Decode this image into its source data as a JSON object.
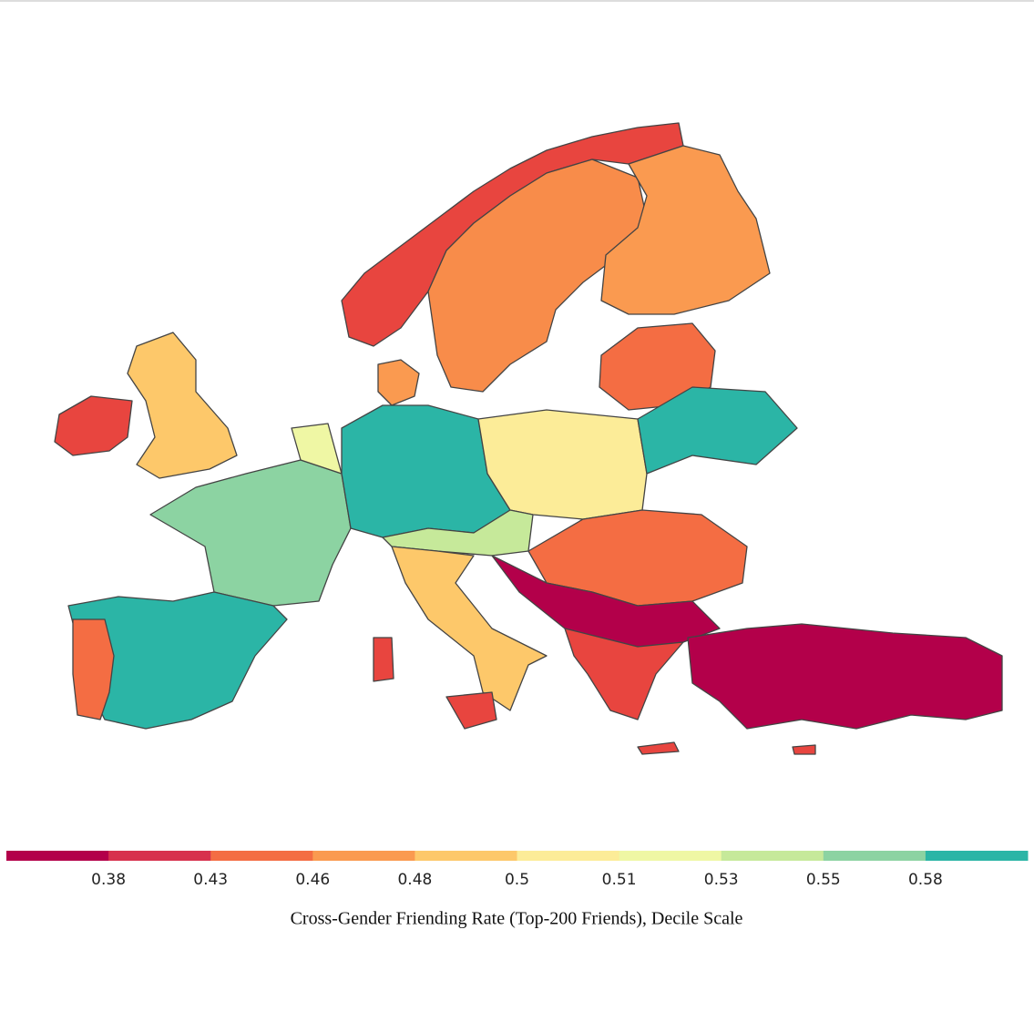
{
  "colorbar": {
    "colors": [
      "#b3004a",
      "#d7304d",
      "#f46d43",
      "#fa9a50",
      "#fdc86a",
      "#fcec98",
      "#eff7a4",
      "#c6e99a",
      "#8cd3a2",
      "#2bb5a6"
    ],
    "ticks": [
      0.38,
      0.43,
      0.46,
      0.48,
      0.5,
      0.51,
      0.53,
      0.55,
      0.58
    ],
    "title": "Cross-Gender Friending Rate (Top-200 Friends), Decile Scale"
  }
}
